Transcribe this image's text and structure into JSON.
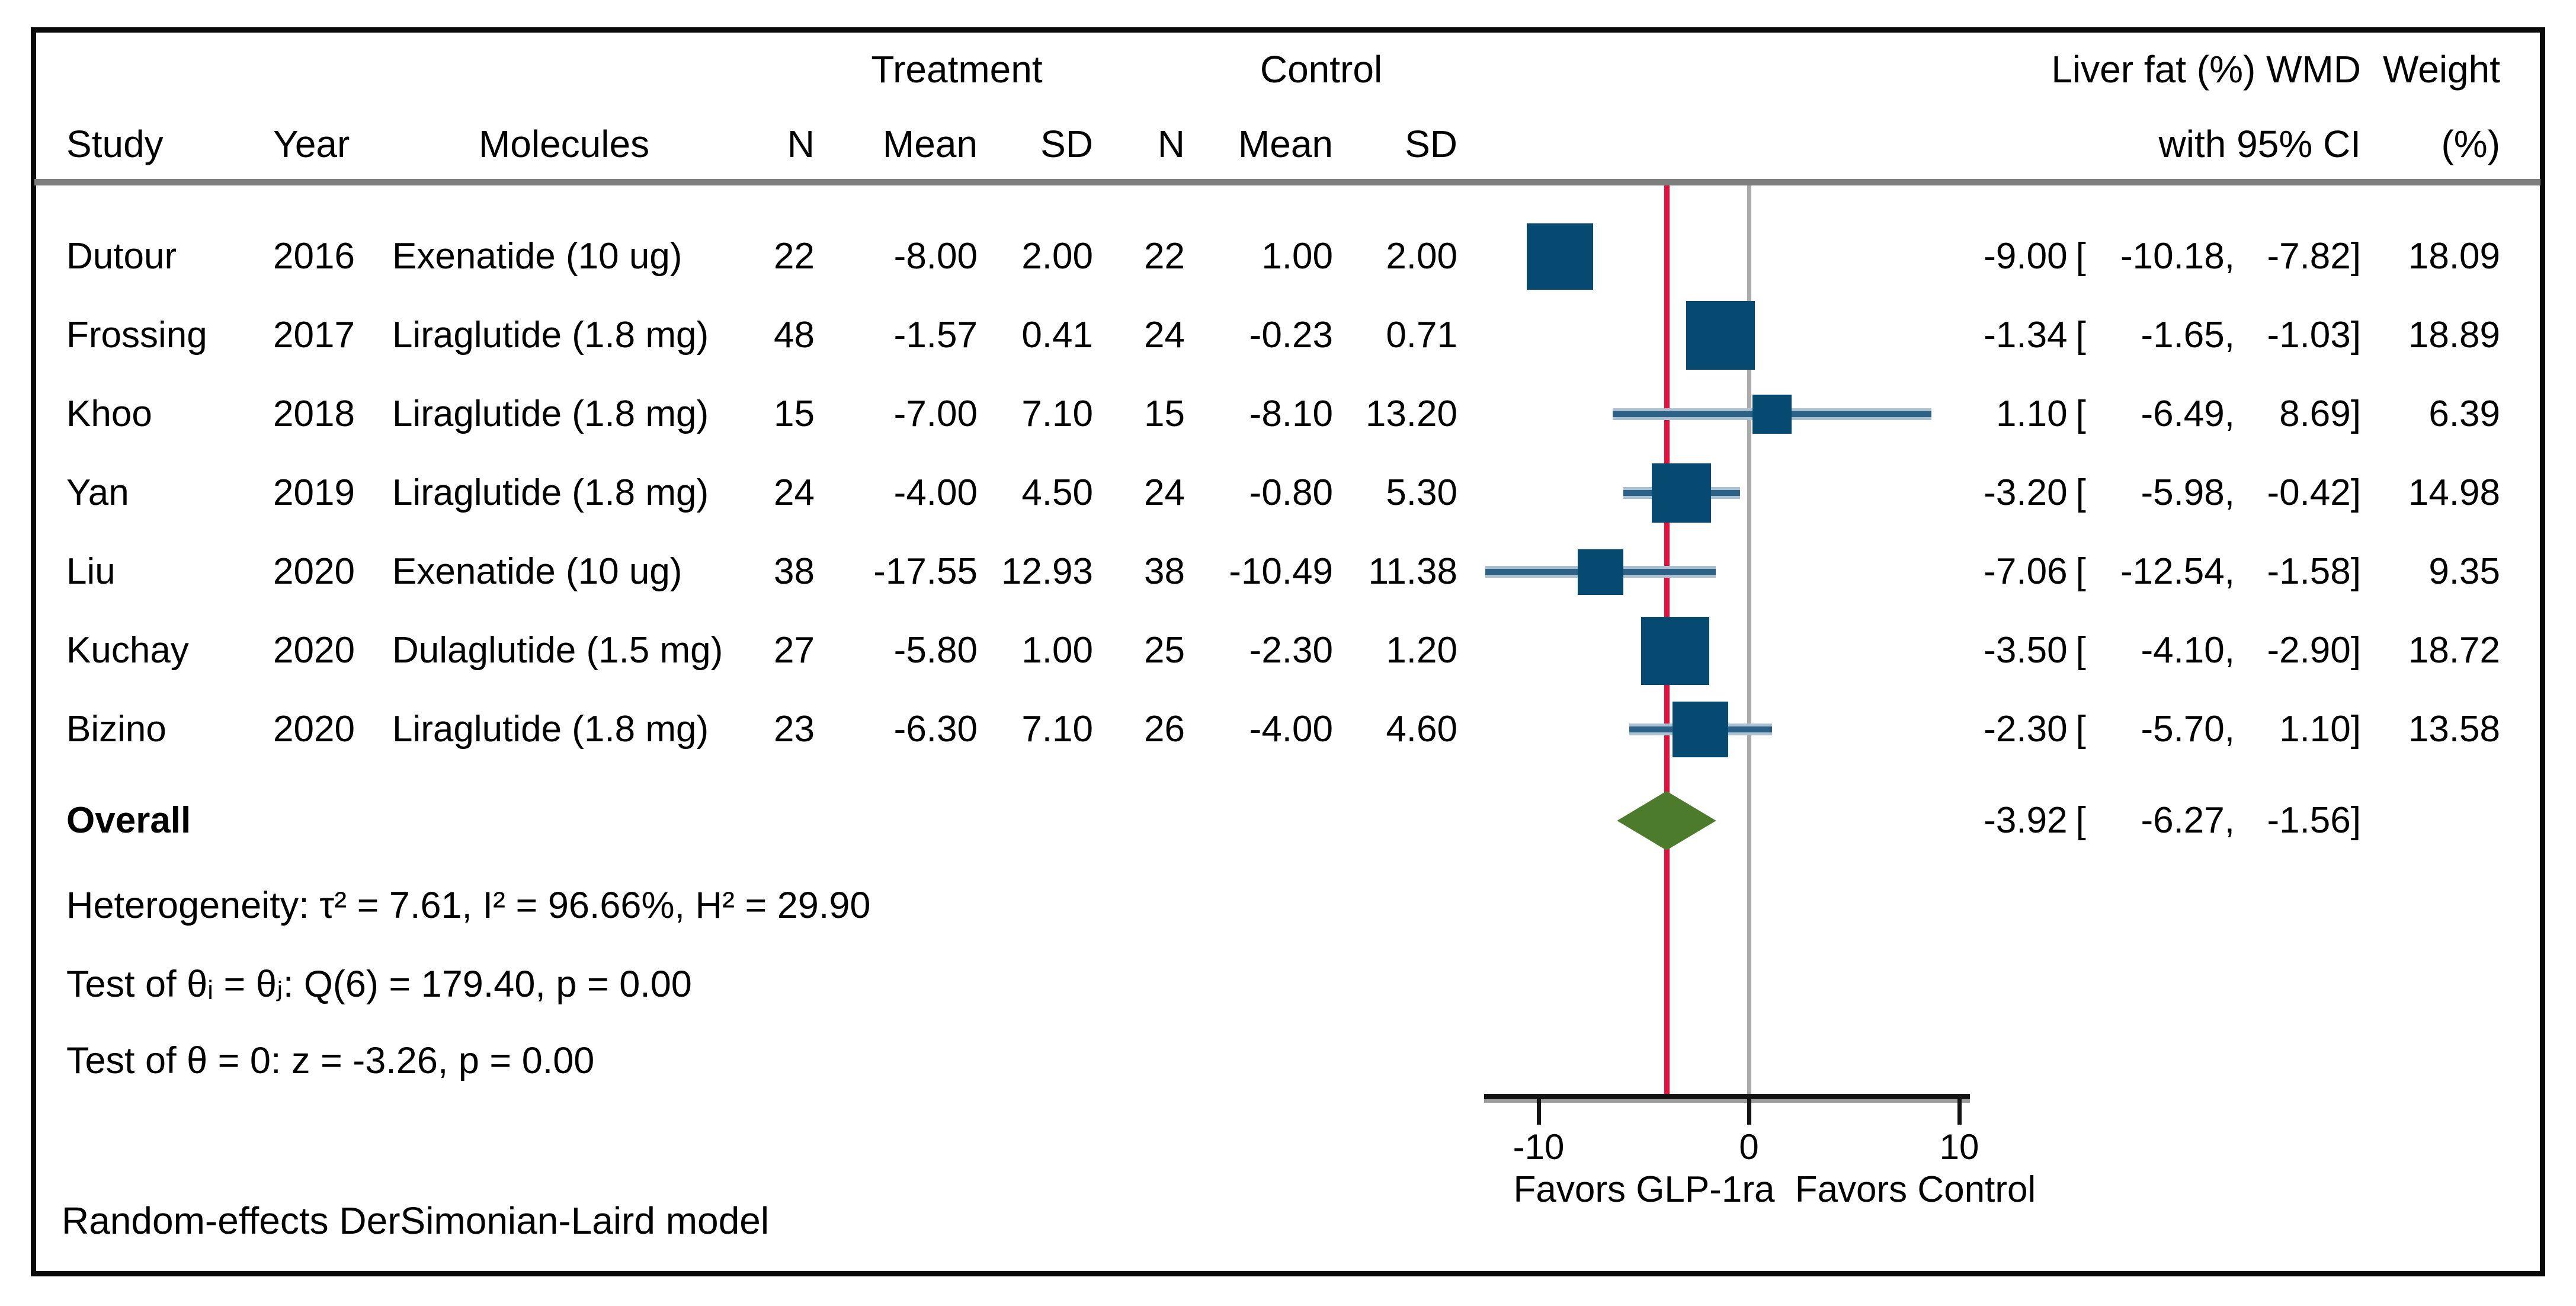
{
  "header": {
    "treatment_group": "Treatment",
    "control_group": "Control",
    "effect_line1": "Liver fat (%) WMD",
    "effect_line2": "with 95% CI",
    "weight_line1": "Weight",
    "weight_line2": "(%)",
    "study": "Study",
    "year": "Year",
    "molecules": "Molecules",
    "n": "N",
    "mean": "Mean",
    "sd": "SD"
  },
  "format": {
    "open_bracket": "[",
    "comma": ",",
    "close_bracket": "]"
  },
  "rows": [
    {
      "study": "Dutour",
      "year": "2016",
      "molecules": "Exenatide (10 ug)",
      "n1": "22",
      "mean1": "-8.00",
      "sd1": "2.00",
      "n2": "22",
      "mean2": "1.00",
      "sd2": "2.00",
      "est": "-9.00",
      "lo": "-10.18",
      "hi": "-7.82",
      "weight": "18.09"
    },
    {
      "study": "Frossing",
      "year": "2017",
      "molecules": "Liraglutide (1.8 mg)",
      "n1": "48",
      "mean1": "-1.57",
      "sd1": "0.41",
      "n2": "24",
      "mean2": "-0.23",
      "sd2": "0.71",
      "est": "-1.34",
      "lo": "-1.65",
      "hi": "-1.03",
      "weight": "18.89"
    },
    {
      "study": "Khoo",
      "year": "2018",
      "molecules": "Liraglutide (1.8 mg)",
      "n1": "15",
      "mean1": "-7.00",
      "sd1": "7.10",
      "n2": "15",
      "mean2": "-8.10",
      "sd2": "13.20",
      "est": "1.10",
      "lo": "-6.49",
      "hi": "8.69",
      "weight": "6.39"
    },
    {
      "study": "Yan",
      "year": "2019",
      "molecules": "Liraglutide (1.8 mg)",
      "n1": "24",
      "mean1": "-4.00",
      "sd1": "4.50",
      "n2": "24",
      "mean2": "-0.80",
      "sd2": "5.30",
      "est": "-3.20",
      "lo": "-5.98",
      "hi": "-0.42",
      "weight": "14.98"
    },
    {
      "study": "Liu",
      "year": "2020",
      "molecules": "Exenatide (10 ug)",
      "n1": "38",
      "mean1": "-17.55",
      "sd1": "12.93",
      "n2": "38",
      "mean2": "-10.49",
      "sd2": "11.38",
      "est": "-7.06",
      "lo": "-12.54",
      "hi": "-1.58",
      "weight": "9.35"
    },
    {
      "study": "Kuchay",
      "year": "2020",
      "molecules": "Dulaglutide (1.5 mg)",
      "n1": "27",
      "mean1": "-5.80",
      "sd1": "1.00",
      "n2": "25",
      "mean2": "-2.30",
      "sd2": "1.20",
      "est": "-3.50",
      "lo": "-4.10",
      "hi": "-2.90",
      "weight": "18.72"
    },
    {
      "study": "Bizino",
      "year": "2020",
      "molecules": "Liraglutide (1.8 mg)",
      "n1": "23",
      "mean1": "-6.30",
      "sd1": "7.10",
      "n2": "26",
      "mean2": "-4.00",
      "sd2": "4.60",
      "est": "-2.30",
      "lo": "-5.70",
      "hi": "1.10",
      "weight": "13.58"
    }
  ],
  "overall": {
    "label": "Overall",
    "est": "-3.92",
    "lo": "-6.27",
    "hi": "-1.56"
  },
  "stats": {
    "heterogeneity": "Heterogeneity: τ² = 7.61, I² = 96.66%, H² = 29.90",
    "test_theta_ij": "Test of θᵢ = θⱼ: Q(6) = 179.40, p = 0.00",
    "test_theta_zero": "Test of θ = 0: z = -3.26, p = 0.00"
  },
  "axis": {
    "ticks": [
      "-10",
      "0",
      "10"
    ],
    "favors_left": "Favors GLP-1ra",
    "favors_right": "Favors Control"
  },
  "footnote": "Random-effects DerSimonian-Laird model",
  "colors": {
    "square": "#064a71",
    "ci_band": "#a9c1d1",
    "ci_core": "#2d6186",
    "overall_line": "#e40f3b",
    "zero_line": "#ababab",
    "diamond": "#4c7c2b",
    "axis": "#141414",
    "axis_shadow": "#9b9b9b",
    "header_rule": "#7e7e7e"
  },
  "chart_data": {
    "type": "forest",
    "title": "Liver fat (%) WMD with 95% CI",
    "studies": [
      {
        "label": "Dutour 2016",
        "est": -9.0,
        "ci": [
          -10.18,
          -7.82
        ],
        "weight": 18.09
      },
      {
        "label": "Frossing 2017",
        "est": -1.34,
        "ci": [
          -1.65,
          -1.03
        ],
        "weight": 18.89
      },
      {
        "label": "Khoo 2018",
        "est": 1.1,
        "ci": [
          -6.49,
          8.69
        ],
        "weight": 6.39
      },
      {
        "label": "Yan 2019",
        "est": -3.2,
        "ci": [
          -5.98,
          -0.42
        ],
        "weight": 14.98
      },
      {
        "label": "Liu 2020",
        "est": -7.06,
        "ci": [
          -12.54,
          -1.58
        ],
        "weight": 9.35
      },
      {
        "label": "Kuchay 2020",
        "est": -3.5,
        "ci": [
          -4.1,
          -2.9
        ],
        "weight": 18.72
      },
      {
        "label": "Bizino 2020",
        "est": -2.3,
        "ci": [
          -5.7,
          1.1
        ],
        "weight": 13.58
      }
    ],
    "overall": {
      "est": -3.92,
      "ci": [
        -6.27,
        -1.56
      ]
    },
    "x_ticks": [
      -10,
      0,
      10
    ],
    "xlim": [
      -12.6,
      10.5
    ],
    "null_line": 0,
    "overall_ref_line": -3.92,
    "favors": [
      "Favors GLP-1ra",
      "Favors Control"
    ],
    "model": "Random-effects DerSimonian-Laird"
  }
}
